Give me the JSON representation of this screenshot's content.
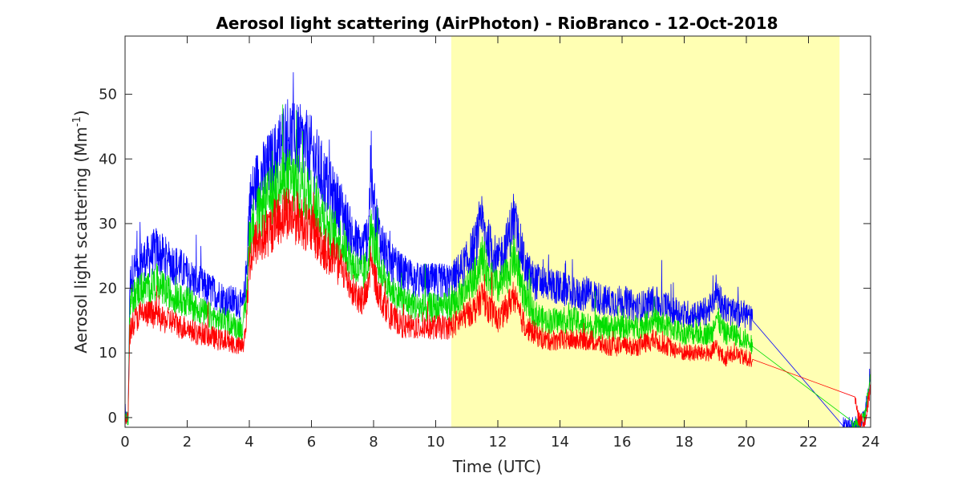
{
  "chart_data": {
    "type": "line",
    "title": "Aerosol light scattering (AirPhoton) - RioBranco - 12-Oct-2018",
    "xlabel": "Time (UTC)",
    "ylabel_main": "Aerosol light scattering (Mm",
    "ylabel_sup": "-1",
    "ylabel_close": ")",
    "xlim": [
      0,
      24
    ],
    "ylim": [
      -1.5,
      59
    ],
    "xticks": [
      0,
      2,
      4,
      6,
      8,
      10,
      12,
      14,
      16,
      18,
      20,
      22,
      24
    ],
    "yticks": [
      0,
      10,
      20,
      30,
      40,
      50
    ],
    "grid": false,
    "shaded_region": {
      "x_start": 10.5,
      "x_end": 23.0,
      "color": "#ffffb3"
    },
    "series": [
      {
        "color": "#0000ff",
        "x": [
          0.0,
          0.1,
          0.15,
          0.2,
          0.3,
          0.5,
          0.8,
          1.0,
          1.2,
          1.5,
          1.8,
          2.0,
          2.3,
          2.6,
          3.0,
          3.3,
          3.6,
          3.8,
          3.9,
          4.0,
          4.2,
          4.5,
          4.8,
          5.0,
          5.2,
          5.5,
          5.8,
          6.0,
          6.3,
          6.6,
          7.0,
          7.3,
          7.6,
          7.8,
          7.9,
          8.0,
          8.2,
          8.5,
          9.0,
          9.5,
          10.0,
          10.5,
          11.0,
          11.3,
          11.5,
          11.7,
          12.0,
          12.3,
          12.5,
          12.7,
          12.9,
          13.2,
          13.5,
          14.0,
          14.5,
          15.0,
          15.5,
          16.0,
          16.5,
          17.0,
          17.5,
          18.0,
          18.5,
          18.9,
          19.0,
          19.3,
          19.6,
          20.0,
          20.2,
          23.1,
          23.6,
          23.8,
          24.0
        ],
        "y": [
          0,
          0,
          20,
          22,
          23,
          24,
          25,
          26,
          25,
          24,
          23,
          22,
          21,
          20,
          19,
          18,
          18,
          17,
          22,
          33,
          36,
          38,
          40,
          42,
          44,
          43,
          42,
          41,
          38,
          35,
          32,
          28,
          26,
          28,
          36,
          33,
          28,
          24,
          22,
          21,
          21,
          21,
          24,
          27,
          30,
          27,
          24,
          27,
          31,
          27,
          23,
          21,
          21,
          20,
          19,
          19,
          18,
          18,
          17,
          18,
          17,
          16,
          16,
          17,
          20,
          17,
          16,
          16,
          15,
          -1,
          -1,
          0,
          7
        ]
      },
      {
        "color": "#00dd00",
        "x": [
          0.0,
          0.1,
          0.15,
          0.2,
          0.3,
          0.5,
          0.8,
          1.0,
          1.2,
          1.5,
          1.8,
          2.0,
          2.3,
          2.6,
          3.0,
          3.3,
          3.6,
          3.8,
          3.9,
          4.0,
          4.2,
          4.5,
          4.8,
          5.0,
          5.2,
          5.5,
          5.8,
          6.0,
          6.3,
          6.6,
          7.0,
          7.3,
          7.6,
          7.8,
          7.9,
          8.0,
          8.2,
          8.5,
          9.0,
          9.5,
          10.0,
          10.5,
          11.0,
          11.3,
          11.5,
          11.7,
          12.0,
          12.3,
          12.5,
          12.7,
          12.9,
          13.2,
          13.5,
          14.0,
          14.5,
          15.0,
          15.5,
          16.0,
          16.5,
          17.0,
          17.5,
          18.0,
          18.5,
          18.9,
          19.0,
          19.3,
          19.6,
          20.0,
          20.2,
          23.4,
          23.6,
          23.8,
          24.0
        ],
        "y": [
          0,
          0,
          17,
          18,
          19,
          20,
          20,
          21,
          20,
          19,
          18,
          18,
          17,
          16,
          15,
          15,
          14,
          14,
          18,
          28,
          31,
          33,
          35,
          36,
          37,
          36,
          35,
          34,
          32,
          29,
          27,
          24,
          22,
          23,
          29,
          27,
          23,
          20,
          18,
          17,
          17,
          17,
          20,
          22,
          25,
          22,
          20,
          22,
          25,
          22,
          18,
          16,
          15,
          15,
          15,
          14,
          14,
          14,
          14,
          15,
          14,
          13,
          13,
          13,
          16,
          13,
          13,
          12,
          11,
          -1,
          -1,
          0,
          6
        ]
      },
      {
        "color": "#ff0000",
        "x": [
          0.0,
          0.1,
          0.15,
          0.2,
          0.3,
          0.5,
          0.8,
          1.0,
          1.2,
          1.5,
          1.8,
          2.0,
          2.3,
          2.6,
          3.0,
          3.3,
          3.6,
          3.8,
          3.9,
          4.0,
          4.2,
          4.5,
          4.8,
          5.0,
          5.2,
          5.5,
          5.8,
          6.0,
          6.3,
          6.6,
          7.0,
          7.3,
          7.6,
          7.8,
          7.9,
          8.0,
          8.2,
          8.5,
          9.0,
          9.5,
          10.0,
          10.5,
          11.0,
          11.3,
          11.5,
          11.7,
          12.0,
          12.3,
          12.5,
          12.7,
          12.9,
          13.2,
          13.5,
          14.0,
          14.5,
          15.0,
          15.5,
          16.0,
          16.5,
          17.0,
          17.5,
          18.0,
          18.5,
          18.9,
          19.0,
          19.3,
          19.6,
          20.0,
          20.2,
          23.5,
          23.6,
          23.8,
          24.0
        ],
        "y": [
          0,
          0,
          13,
          14,
          15,
          16,
          16,
          16,
          15,
          15,
          14,
          14,
          13,
          13,
          12,
          12,
          11,
          11,
          15,
          24,
          27,
          28,
          30,
          31,
          32,
          31,
          30,
          29,
          27,
          25,
          23,
          20,
          18,
          19,
          24,
          22,
          19,
          16,
          14,
          14,
          14,
          14,
          16,
          17,
          19,
          17,
          15,
          17,
          19,
          16,
          14,
          13,
          12,
          12,
          12,
          12,
          11,
          11,
          11,
          12,
          11,
          10,
          10,
          10,
          11,
          9,
          10,
          9,
          9,
          2.5,
          0,
          -1,
          5
        ]
      }
    ]
  }
}
